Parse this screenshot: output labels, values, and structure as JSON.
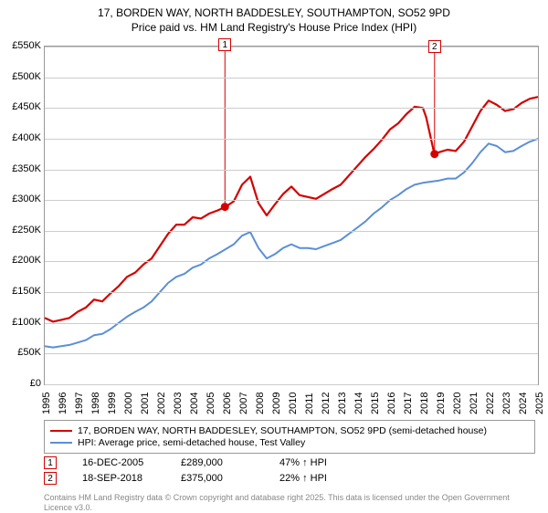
{
  "title_line1": "17, BORDEN WAY, NORTH BADDESLEY, SOUTHAMPTON, SO52 9PD",
  "title_line2": "Price paid vs. HM Land Registry's House Price Index (HPI)",
  "chart": {
    "type": "line",
    "background_color": "#ffffff",
    "grid_color": "#cccccc",
    "axis_color": "#999999",
    "x_years": [
      1995,
      1996,
      1997,
      1998,
      1999,
      2000,
      2001,
      2002,
      2003,
      2004,
      2005,
      2006,
      2007,
      2008,
      2009,
      2010,
      2011,
      2012,
      2013,
      2014,
      2015,
      2016,
      2017,
      2018,
      2019,
      2020,
      2021,
      2022,
      2023,
      2024,
      2025
    ],
    "y_ticks": [
      0,
      50000,
      100000,
      150000,
      200000,
      250000,
      300000,
      350000,
      400000,
      450000,
      500000,
      550000
    ],
    "y_labels": [
      "£0",
      "£50K",
      "£100K",
      "£150K",
      "£200K",
      "£250K",
      "£300K",
      "£350K",
      "£400K",
      "£450K",
      "£500K",
      "£550K"
    ],
    "ylim": [
      0,
      550000
    ],
    "series": [
      {
        "name": "property",
        "color": "#d40000",
        "width": 2.2,
        "points": [
          [
            1995,
            108000
          ],
          [
            1995.5,
            102000
          ],
          [
            1996,
            105000
          ],
          [
            1996.5,
            108000
          ],
          [
            1997,
            118000
          ],
          [
            1997.5,
            125000
          ],
          [
            1998,
            138000
          ],
          [
            1998.5,
            135000
          ],
          [
            1999,
            148000
          ],
          [
            1999.5,
            160000
          ],
          [
            2000,
            175000
          ],
          [
            2000.5,
            182000
          ],
          [
            2001,
            195000
          ],
          [
            2001.5,
            205000
          ],
          [
            2002,
            225000
          ],
          [
            2002.5,
            245000
          ],
          [
            2003,
            260000
          ],
          [
            2003.5,
            260000
          ],
          [
            2004,
            272000
          ],
          [
            2004.5,
            270000
          ],
          [
            2005,
            278000
          ],
          [
            2005.5,
            283000
          ],
          [
            2006,
            289000
          ],
          [
            2006.5,
            298000
          ],
          [
            2007,
            325000
          ],
          [
            2007.5,
            338000
          ],
          [
            2008,
            295000
          ],
          [
            2008.5,
            275000
          ],
          [
            2009,
            293000
          ],
          [
            2009.5,
            310000
          ],
          [
            2010,
            322000
          ],
          [
            2010.5,
            308000
          ],
          [
            2011,
            305000
          ],
          [
            2011.5,
            302000
          ],
          [
            2012,
            310000
          ],
          [
            2012.5,
            318000
          ],
          [
            2013,
            325000
          ],
          [
            2013.5,
            340000
          ],
          [
            2014,
            355000
          ],
          [
            2014.5,
            370000
          ],
          [
            2015,
            383000
          ],
          [
            2015.5,
            398000
          ],
          [
            2016,
            415000
          ],
          [
            2016.5,
            425000
          ],
          [
            2017,
            440000
          ],
          [
            2017.5,
            452000
          ],
          [
            2018,
            450000
          ],
          [
            2018.2,
            435000
          ],
          [
            2018.7,
            375000
          ],
          [
            2019,
            378000
          ],
          [
            2019.5,
            382000
          ],
          [
            2020,
            380000
          ],
          [
            2020.5,
            395000
          ],
          [
            2021,
            420000
          ],
          [
            2021.5,
            445000
          ],
          [
            2022,
            462000
          ],
          [
            2022.5,
            455000
          ],
          [
            2023,
            445000
          ],
          [
            2023.5,
            448000
          ],
          [
            2024,
            458000
          ],
          [
            2024.5,
            465000
          ],
          [
            2025,
            468000
          ]
        ]
      },
      {
        "name": "hpi",
        "color": "#5b8fd6",
        "width": 2,
        "points": [
          [
            1995,
            62000
          ],
          [
            1995.5,
            60000
          ],
          [
            1996,
            62000
          ],
          [
            1996.5,
            64000
          ],
          [
            1997,
            68000
          ],
          [
            1997.5,
            72000
          ],
          [
            1998,
            80000
          ],
          [
            1998.5,
            82000
          ],
          [
            1999,
            90000
          ],
          [
            1999.5,
            100000
          ],
          [
            2000,
            110000
          ],
          [
            2000.5,
            118000
          ],
          [
            2001,
            125000
          ],
          [
            2001.5,
            135000
          ],
          [
            2002,
            150000
          ],
          [
            2002.5,
            165000
          ],
          [
            2003,
            175000
          ],
          [
            2003.5,
            180000
          ],
          [
            2004,
            190000
          ],
          [
            2004.5,
            195000
          ],
          [
            2005,
            205000
          ],
          [
            2005.5,
            212000
          ],
          [
            2006,
            220000
          ],
          [
            2006.5,
            228000
          ],
          [
            2007,
            242000
          ],
          [
            2007.5,
            248000
          ],
          [
            2008,
            222000
          ],
          [
            2008.5,
            205000
          ],
          [
            2009,
            212000
          ],
          [
            2009.5,
            222000
          ],
          [
            2010,
            228000
          ],
          [
            2010.5,
            222000
          ],
          [
            2011,
            222000
          ],
          [
            2011.5,
            220000
          ],
          [
            2012,
            225000
          ],
          [
            2012.5,
            230000
          ],
          [
            2013,
            235000
          ],
          [
            2013.5,
            245000
          ],
          [
            2014,
            255000
          ],
          [
            2014.5,
            265000
          ],
          [
            2015,
            278000
          ],
          [
            2015.5,
            288000
          ],
          [
            2016,
            300000
          ],
          [
            2016.5,
            308000
          ],
          [
            2017,
            318000
          ],
          [
            2017.5,
            325000
          ],
          [
            2018,
            328000
          ],
          [
            2018.5,
            330000
          ],
          [
            2019,
            332000
          ],
          [
            2019.5,
            335000
          ],
          [
            2020,
            335000
          ],
          [
            2020.5,
            345000
          ],
          [
            2021,
            360000
          ],
          [
            2021.5,
            378000
          ],
          [
            2022,
            392000
          ],
          [
            2022.5,
            388000
          ],
          [
            2023,
            378000
          ],
          [
            2023.5,
            380000
          ],
          [
            2024,
            388000
          ],
          [
            2024.5,
            395000
          ],
          [
            2025,
            400000
          ]
        ]
      }
    ],
    "sale_markers": [
      {
        "id": "1",
        "x_year": 2005.96,
        "y_value": 289000,
        "label_top_offset": -185
      },
      {
        "id": "2",
        "x_year": 2018.71,
        "y_value": 375000,
        "label_top_offset": -125
      }
    ],
    "marker_color": "#d40000"
  },
  "legend": {
    "items": [
      {
        "color": "#d40000",
        "label": "17, BORDEN WAY, NORTH BADDESLEY, SOUTHAMPTON, SO52 9PD (semi-detached house)"
      },
      {
        "color": "#5b8fd6",
        "label": "HPI: Average price, semi-detached house, Test Valley"
      }
    ]
  },
  "transactions": [
    {
      "id": "1",
      "date": "16-DEC-2005",
      "price": "£289,000",
      "delta": "47% ↑ HPI"
    },
    {
      "id": "2",
      "date": "18-SEP-2018",
      "price": "£375,000",
      "delta": "22% ↑ HPI"
    }
  ],
  "attribution_line1": "Contains HM Land Registry data © Crown copyright and database right 2025.",
  "attribution_line2": "This data is licensed under the Open Government Licence v3.0."
}
